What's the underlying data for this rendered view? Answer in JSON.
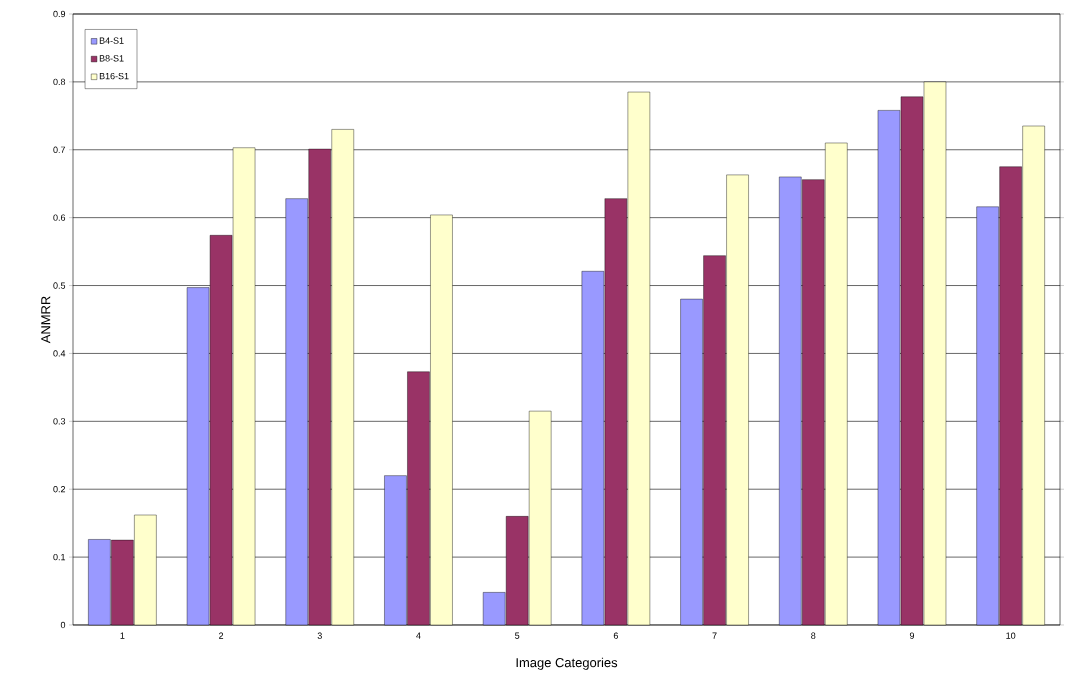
{
  "chart_data": {
    "type": "bar",
    "xlabel": "Image Categories",
    "ylabel": "ANMRR",
    "categories": [
      "1",
      "2",
      "3",
      "4",
      "5",
      "6",
      "7",
      "8",
      "9",
      "10"
    ],
    "series": [
      {
        "name": "B4-S1",
        "color": "#9999ff",
        "values": [
          0.126,
          0.497,
          0.628,
          0.22,
          0.048,
          0.521,
          0.48,
          0.66,
          0.758,
          0.616
        ]
      },
      {
        "name": "B8-S1",
        "color": "#993366",
        "values": [
          0.125,
          0.574,
          0.701,
          0.373,
          0.16,
          0.628,
          0.544,
          0.656,
          0.778,
          0.675
        ]
      },
      {
        "name": "B16-S1",
        "color": "#ffffcc",
        "values": [
          0.162,
          0.703,
          0.73,
          0.604,
          0.315,
          0.785,
          0.663,
          0.71,
          0.8,
          0.735
        ]
      }
    ],
    "ylim": [
      0,
      0.9
    ],
    "yticks": [
      0,
      0.1,
      0.2,
      0.3,
      0.4,
      0.5,
      0.6,
      0.7,
      0.8,
      0.9
    ],
    "grid": "y",
    "legend": "top left"
  }
}
